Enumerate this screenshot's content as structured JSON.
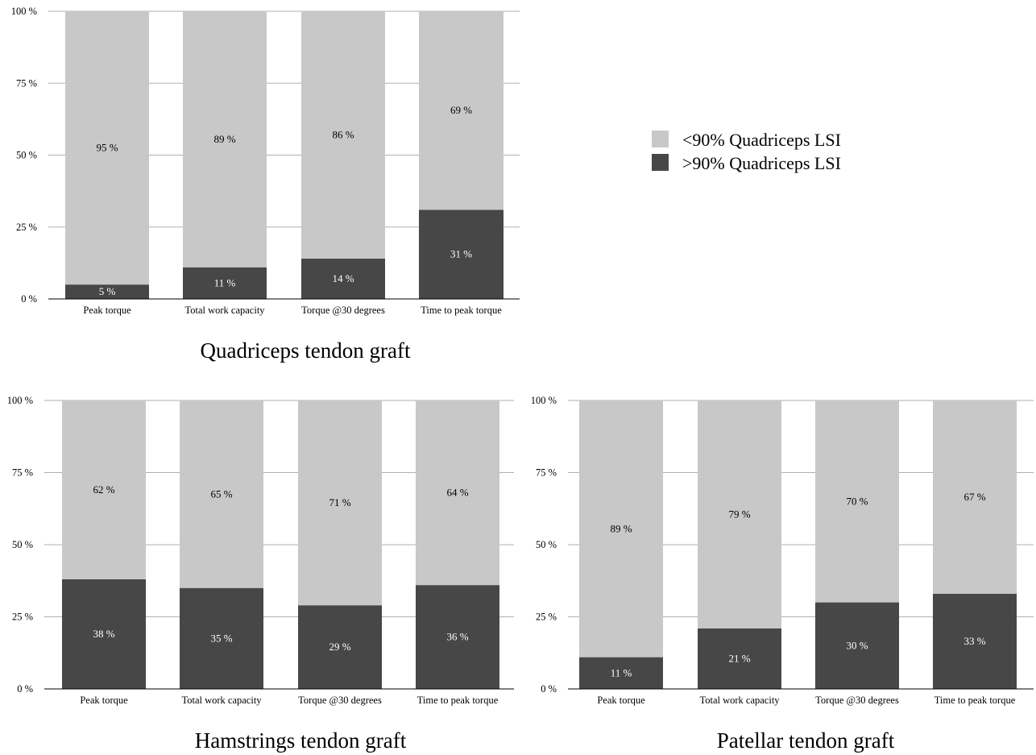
{
  "chart_data": [
    {
      "type": "bar",
      "stacked": true,
      "percent_stacked": true,
      "title": "Quadriceps tendon graft",
      "categories": [
        "Peak torque",
        "Total work capacity",
        "Torque @30 degrees",
        "Time to peak torque"
      ],
      "series": [
        {
          "name": ">90% Quadriceps LSI",
          "values": [
            5,
            11,
            14,
            31
          ],
          "labels": [
            "5 %",
            "11 %",
            "14 %",
            "31 %"
          ],
          "color": "#474747"
        },
        {
          "name": "<90% Quadriceps LSI",
          "values": [
            95,
            89,
            86,
            69
          ],
          "labels": [
            "95 %",
            "89 %",
            "86 %",
            "69 %"
          ],
          "color": "#c8c8c8"
        }
      ],
      "ylim": [
        0,
        100
      ],
      "yticks": [
        "0 %",
        "25 %",
        "50 %",
        "75 %",
        "100 %"
      ],
      "grid": true
    },
    {
      "type": "bar",
      "stacked": true,
      "percent_stacked": true,
      "title": "Hamstrings tendon graft",
      "categories": [
        "Peak torque",
        "Total work capacity",
        "Torque @30 degrees",
        "Time to peak torque"
      ],
      "series": [
        {
          "name": ">90% Quadriceps LSI",
          "values": [
            38,
            35,
            29,
            36
          ],
          "labels": [
            "38 %",
            "35 %",
            "29 %",
            "36 %"
          ],
          "color": "#474747"
        },
        {
          "name": "<90% Quadriceps LSI",
          "values": [
            62,
            65,
            71,
            64
          ],
          "labels": [
            "62 %",
            "65 %",
            "71 %",
            "64 %"
          ],
          "color": "#c8c8c8"
        }
      ],
      "ylim": [
        0,
        100
      ],
      "yticks": [
        "0 %",
        "25 %",
        "50 %",
        "75 %",
        "100 %"
      ],
      "grid": true
    },
    {
      "type": "bar",
      "stacked": true,
      "percent_stacked": true,
      "title": "Patellar tendon graft",
      "categories": [
        "Peak torque",
        "Total work capacity",
        "Torque @30 degrees",
        "Time to peak torque"
      ],
      "series": [
        {
          "name": ">90% Quadriceps LSI",
          "values": [
            11,
            21,
            30,
            33
          ],
          "labels": [
            "11 %",
            "21 %",
            "30 %",
            "33 %"
          ],
          "color": "#474747"
        },
        {
          "name": "<90% Quadriceps LSI",
          "values": [
            89,
            79,
            70,
            67
          ],
          "labels": [
            "89 %",
            "79 %",
            "70 %",
            "67 %"
          ],
          "color": "#c8c8c8"
        }
      ],
      "ylim": [
        0,
        100
      ],
      "yticks": [
        "0 %",
        "25 %",
        "50 %",
        "75 %",
        "100 %"
      ],
      "grid": true
    }
  ],
  "legend": {
    "placement": "top-right",
    "items": [
      {
        "label": "<90% Quadriceps LSI",
        "color": "#c8c8c8"
      },
      {
        "label": ">90% Quadriceps LSI",
        "color": "#474747"
      }
    ]
  }
}
